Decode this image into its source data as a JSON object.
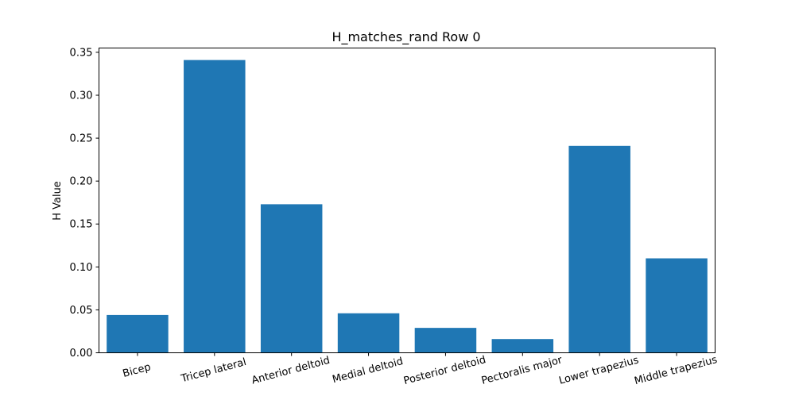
{
  "chart_data": {
    "type": "bar",
    "title": "H_matches_rand Row 0",
    "xlabel": "",
    "ylabel": "H Value",
    "categories": [
      "Bicep",
      "Tricep lateral",
      "Anterior deltoid",
      "Medial deltoid",
      "Posterior deltoid",
      "Pectoralis major",
      "Lower trapezius",
      "Middle trapezius"
    ],
    "values": [
      0.044,
      0.341,
      0.173,
      0.046,
      0.029,
      0.016,
      0.241,
      0.11
    ],
    "ylim": [
      0,
      0.355
    ],
    "yticks": [
      0.0,
      0.05,
      0.1,
      0.15,
      0.2,
      0.25,
      0.3,
      0.35
    ],
    "ytick_labels": [
      "0.00",
      "0.05",
      "0.10",
      "0.15",
      "0.20",
      "0.25",
      "0.30",
      "0.35"
    ],
    "bar_color": "#1f77b4",
    "grid": false,
    "x_tick_rotation_deg": 15
  }
}
